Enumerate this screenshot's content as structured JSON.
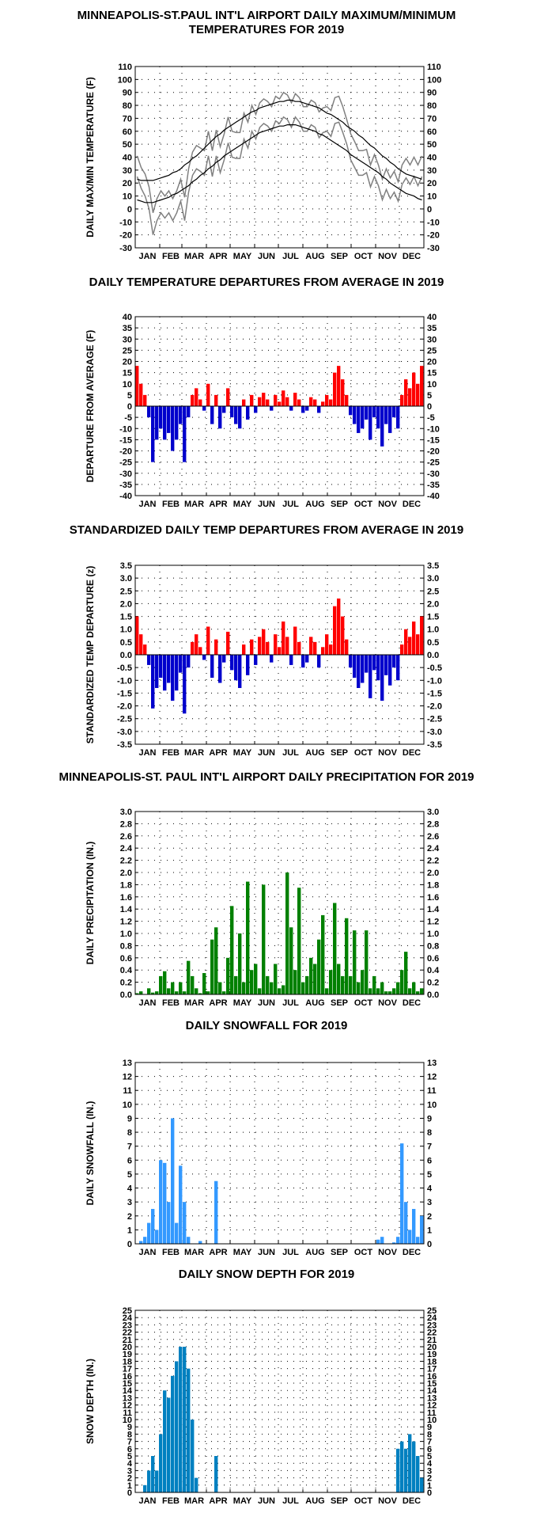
{
  "chart_data": [
    {
      "type": "line",
      "title": [
        "MINNEAPOLIS-ST.PAUL INT'L AIRPORT DAILY MAXIMUM/MINIMUM",
        "TEMPERATURES FOR 2019"
      ],
      "ylabel": "DAILY MAX/MIN TEMPERATURE (F)",
      "months": [
        "JAN",
        "FEB",
        "MAR",
        "APR",
        "MAY",
        "JUN",
        "JUL",
        "AUG",
        "SEP",
        "OCT",
        "NOV",
        "DEC"
      ],
      "ylim": [
        -30,
        110
      ],
      "yticks": [
        -30,
        -20,
        -10,
        0,
        10,
        20,
        30,
        40,
        50,
        60,
        70,
        80,
        90,
        100,
        110
      ],
      "series": [
        {
          "name": "max",
          "color": "#808080",
          "values": [
            41,
            32,
            27,
            17,
            -3,
            8,
            14,
            10,
            14,
            8,
            14,
            23,
            9,
            31,
            44,
            49,
            47,
            45,
            60,
            45,
            61,
            48,
            58,
            71,
            60,
            59,
            59,
            74,
            67,
            80,
            73,
            82,
            85,
            83,
            79,
            87,
            85,
            90,
            88,
            82,
            89,
            86,
            79,
            79,
            84,
            82,
            75,
            78,
            79,
            76,
            86,
            87,
            79,
            69,
            58,
            52,
            45,
            45,
            46,
            34,
            42,
            34,
            23,
            31,
            24,
            29,
            21,
            34,
            39,
            34,
            40,
            34,
            41
          ]
        },
        {
          "name": "min",
          "color": "#808080",
          "values": [
            25,
            16,
            10,
            0,
            -20,
            -9,
            -3,
            -7,
            -3,
            -9,
            -3,
            6,
            -9,
            13,
            26,
            31,
            29,
            26,
            41,
            25,
            41,
            28,
            38,
            51,
            40,
            39,
            39,
            54,
            47,
            60,
            54,
            63,
            66,
            64,
            60,
            68,
            66,
            71,
            69,
            63,
            71,
            67,
            60,
            60,
            65,
            63,
            55,
            59,
            60,
            56,
            66,
            67,
            59,
            50,
            38,
            32,
            26,
            26,
            28,
            17,
            25,
            18,
            7,
            15,
            8,
            13,
            6,
            19,
            24,
            19,
            25,
            18,
            25
          ]
        },
        {
          "name": "normal max",
          "color": "#000000",
          "values": [
            23,
            22,
            22,
            22,
            22,
            23,
            24,
            25,
            26,
            28,
            29,
            31,
            34,
            36,
            39,
            41,
            44,
            47,
            50,
            53,
            56,
            58,
            61,
            63,
            65,
            67,
            69,
            71,
            73,
            75,
            76,
            78,
            79,
            80,
            81,
            82,
            83,
            83,
            84,
            84,
            83,
            83,
            82,
            81,
            80,
            79,
            78,
            76,
            74,
            73,
            71,
            69,
            67,
            64,
            62,
            60,
            57,
            55,
            52,
            49,
            47,
            44,
            41,
            39,
            36,
            34,
            31,
            29,
            27,
            26,
            25,
            24,
            23
          ]
        },
        {
          "name": "normal min",
          "color": "#000000",
          "values": [
            7,
            6,
            5,
            5,
            5,
            6,
            7,
            8,
            9,
            11,
            12,
            14,
            16,
            18,
            21,
            23,
            26,
            28,
            31,
            33,
            36,
            38,
            41,
            43,
            45,
            47,
            49,
            51,
            53,
            55,
            57,
            59,
            60,
            61,
            62,
            63,
            64,
            64,
            65,
            65,
            65,
            64,
            63,
            62,
            61,
            60,
            58,
            57,
            55,
            53,
            51,
            49,
            47,
            45,
            42,
            40,
            38,
            36,
            34,
            32,
            30,
            28,
            25,
            23,
            20,
            18,
            16,
            14,
            12,
            11,
            10,
            8,
            7
          ]
        }
      ]
    },
    {
      "type": "diverging",
      "title": [
        "DAILY TEMPERATURE DEPARTURES FROM AVERAGE IN 2019"
      ],
      "ylabel": "DEPARTURE FROM AVERAGE (F)",
      "months": [
        "JAN",
        "FEB",
        "MAR",
        "APR",
        "MAY",
        "JUN",
        "JUL",
        "AUG",
        "SEP",
        "OCT",
        "NOV",
        "DEC"
      ],
      "ylim": [
        -40,
        40
      ],
      "yticks": [
        -40,
        -35,
        -30,
        -25,
        -20,
        -15,
        -10,
        -5,
        0,
        5,
        10,
        15,
        20,
        25,
        30,
        35,
        40
      ],
      "color": "#ff0000",
      "negative_color": "#0000cc",
      "values": [
        18,
        10,
        5,
        -5,
        -25,
        -15,
        -10,
        -15,
        -12,
        -20,
        -15,
        -8,
        -25,
        -5,
        5,
        8,
        3,
        -2,
        10,
        -8,
        5,
        -10,
        -3,
        8,
        -5,
        -8,
        -10,
        3,
        -6,
        5,
        -3,
        4,
        6,
        3,
        -2,
        5,
        2,
        7,
        4,
        -2,
        6,
        3,
        -3,
        -2,
        4,
        3,
        -3,
        2,
        5,
        3,
        15,
        18,
        12,
        5,
        -4,
        -8,
        -12,
        -10,
        -6,
        -15,
        -5,
        -10,
        -18,
        -8,
        -12,
        -5,
        -10,
        5,
        12,
        8,
        15,
        10,
        18
      ]
    },
    {
      "type": "diverging",
      "title": [
        "STANDARDIZED DAILY TEMP DEPARTURES FROM AVERAGE IN 2019"
      ],
      "ylabel": "STANDARDIZED TEMP DEPARTURE (z)",
      "months": [
        "JAN",
        "FEB",
        "MAR",
        "APR",
        "MAY",
        "JUN",
        "JUL",
        "AUG",
        "SEP",
        "OCT",
        "NOV",
        "DEC"
      ],
      "ylim": [
        -3.5,
        3.5
      ],
      "yticks": [
        -3.5,
        {
          "value": -3,
          "label": "-3.0"
        },
        -2.5,
        {
          "value": -2,
          "label": "-2.0"
        },
        -1.5,
        {
          "value": -1,
          "label": "-1.0"
        },
        -0.5,
        {
          "value": 0,
          "label": "0.0"
        },
        0.5,
        {
          "value": 1,
          "label": "1.0"
        },
        1.5,
        {
          "value": 2,
          "label": "2.0"
        },
        2.5,
        {
          "value": 3,
          "label": "3.0"
        },
        3.5
      ],
      "color": "#ff0000",
      "negative_color": "#0000cc",
      "values": [
        1.5,
        0.8,
        0.4,
        -0.4,
        -2.1,
        -1.3,
        -0.9,
        -1.4,
        -1.1,
        -1.8,
        -1.4,
        -0.7,
        -2.3,
        -0.5,
        0.5,
        0.8,
        0.3,
        -0.2,
        1.1,
        -0.9,
        0.6,
        -1.1,
        -0.3,
        0.9,
        -0.6,
        -1.0,
        -1.3,
        0.4,
        -0.8,
        0.6,
        -0.4,
        0.7,
        1.0,
        0.5,
        -0.3,
        0.8,
        0.3,
        1.3,
        0.7,
        -0.4,
        1.1,
        0.5,
        -0.5,
        -0.3,
        0.7,
        0.5,
        -0.5,
        0.3,
        0.8,
        0.4,
        1.9,
        2.2,
        1.5,
        0.6,
        -0.5,
        -0.9,
        -1.3,
        -1.1,
        -0.7,
        -1.7,
        -0.6,
        -1.0,
        -1.8,
        -0.8,
        -1.2,
        -0.5,
        -1.0,
        0.4,
        1.0,
        0.7,
        1.3,
        0.8,
        1.5
      ]
    },
    {
      "type": "bar",
      "title": [
        "MINNEAPOLIS-ST. PAUL INT'L AIRPORT DAILY PRECIPITATION FOR 2019"
      ],
      "ylabel": "DAILY PRECIPITATION (IN.)",
      "months": [
        "JAN",
        "FEB",
        "MAR",
        "APR",
        "MAY",
        "JUN",
        "JUL",
        "AUG",
        "SEP",
        "OCT",
        "NOV",
        "DEC"
      ],
      "ylim": [
        0,
        3
      ],
      "yticks": [
        {
          "value": 0,
          "label": "0.0"
        },
        0.2,
        0.4,
        0.6,
        0.8,
        {
          "value": 1,
          "label": "1.0"
        },
        1.2,
        1.4,
        1.6,
        1.8,
        {
          "value": 2,
          "label": "2.0"
        },
        2.2,
        2.4,
        2.6,
        2.8,
        {
          "value": 3,
          "label": "3.0"
        }
      ],
      "color": "#008000",
      "values": [
        0.02,
        0.05,
        0,
        0.1,
        0.03,
        0.05,
        0.3,
        0.38,
        0.1,
        0.2,
        0.05,
        0.2,
        0.05,
        0.55,
        0.3,
        0.1,
        0.02,
        0.35,
        0.05,
        0.9,
        1.1,
        0.2,
        0.05,
        0.6,
        1.45,
        0.3,
        1.0,
        0.2,
        1.85,
        0.4,
        0.5,
        0.1,
        1.8,
        0.3,
        0.2,
        0.5,
        0.1,
        0.15,
        2.0,
        1.1,
        0.4,
        1.75,
        0.2,
        0.3,
        0.6,
        0.5,
        0.9,
        1.3,
        0.1,
        0.4,
        1.5,
        0.5,
        0.3,
        1.25,
        0.3,
        1.05,
        0.2,
        0.4,
        1.05,
        0.1,
        0.3,
        0.1,
        0.2,
        0.05,
        0.05,
        0.1,
        0.2,
        0.4,
        0.7,
        0.1,
        0.2,
        0.05,
        0.1
      ]
    },
    {
      "type": "bar",
      "title": [
        "DAILY SNOWFALL FOR 2019"
      ],
      "ylabel": "DAILY SNOWFALL (IN.)",
      "months": [
        "JAN",
        "FEB",
        "MAR",
        "APR",
        "MAY",
        "JUN",
        "JUL",
        "AUG",
        "SEP",
        "OCT",
        "NOV",
        "DEC"
      ],
      "ylim": [
        0,
        13
      ],
      "yticks": [
        0,
        1,
        2,
        3,
        4,
        5,
        6,
        7,
        8,
        9,
        10,
        11,
        12,
        13
      ],
      "color": "#3399ff",
      "values": [
        0,
        0.2,
        0.5,
        1.5,
        2.5,
        1.0,
        6,
        5.8,
        3,
        9,
        1.5,
        5.6,
        3,
        0.5,
        0,
        0,
        0.2,
        0,
        0,
        0,
        4.5,
        0,
        0,
        0,
        0,
        0,
        0,
        0,
        0,
        0,
        0,
        0,
        0,
        0,
        0,
        0,
        0,
        0,
        0,
        0,
        0,
        0,
        0,
        0,
        0,
        0,
        0,
        0,
        0,
        0,
        0,
        0,
        0,
        0,
        0,
        0,
        0,
        0,
        0,
        0,
        0,
        0.3,
        0.5,
        0,
        0,
        0.1,
        0.5,
        7.2,
        3,
        1,
        2.5,
        0.5,
        2
      ]
    },
    {
      "type": "bar",
      "title": [
        "DAILY SNOW DEPTH FOR 2019"
      ],
      "ylabel": "SNOW DEPTH (IN.)",
      "months": [
        "JAN",
        "FEB",
        "MAR",
        "APR",
        "MAY",
        "JUN",
        "JUL",
        "AUG",
        "SEP",
        "OCT",
        "NOV",
        "DEC"
      ],
      "ylim": [
        0,
        25
      ],
      "yticks": [
        0,
        1,
        2,
        3,
        4,
        5,
        6,
        7,
        8,
        9,
        10,
        11,
        12,
        13,
        14,
        15,
        16,
        17,
        18,
        19,
        20,
        21,
        22,
        23,
        24,
        25
      ],
      "color": "#0080c0",
      "values": [
        0,
        0,
        1,
        3,
        5,
        3,
        8,
        14,
        13,
        16,
        18,
        20,
        20,
        17,
        10,
        2,
        0,
        0,
        0,
        0,
        5,
        0,
        0,
        0,
        0,
        0,
        0,
        0,
        0,
        0,
        0,
        0,
        0,
        0,
        0,
        0,
        0,
        0,
        0,
        0,
        0,
        0,
        0,
        0,
        0,
        0,
        0,
        0,
        0,
        0,
        0,
        0,
        0,
        0,
        0,
        0,
        0,
        0,
        0,
        0,
        0,
        0,
        0,
        0,
        0,
        0,
        6,
        7,
        6,
        8,
        7,
        5,
        2
      ]
    }
  ]
}
